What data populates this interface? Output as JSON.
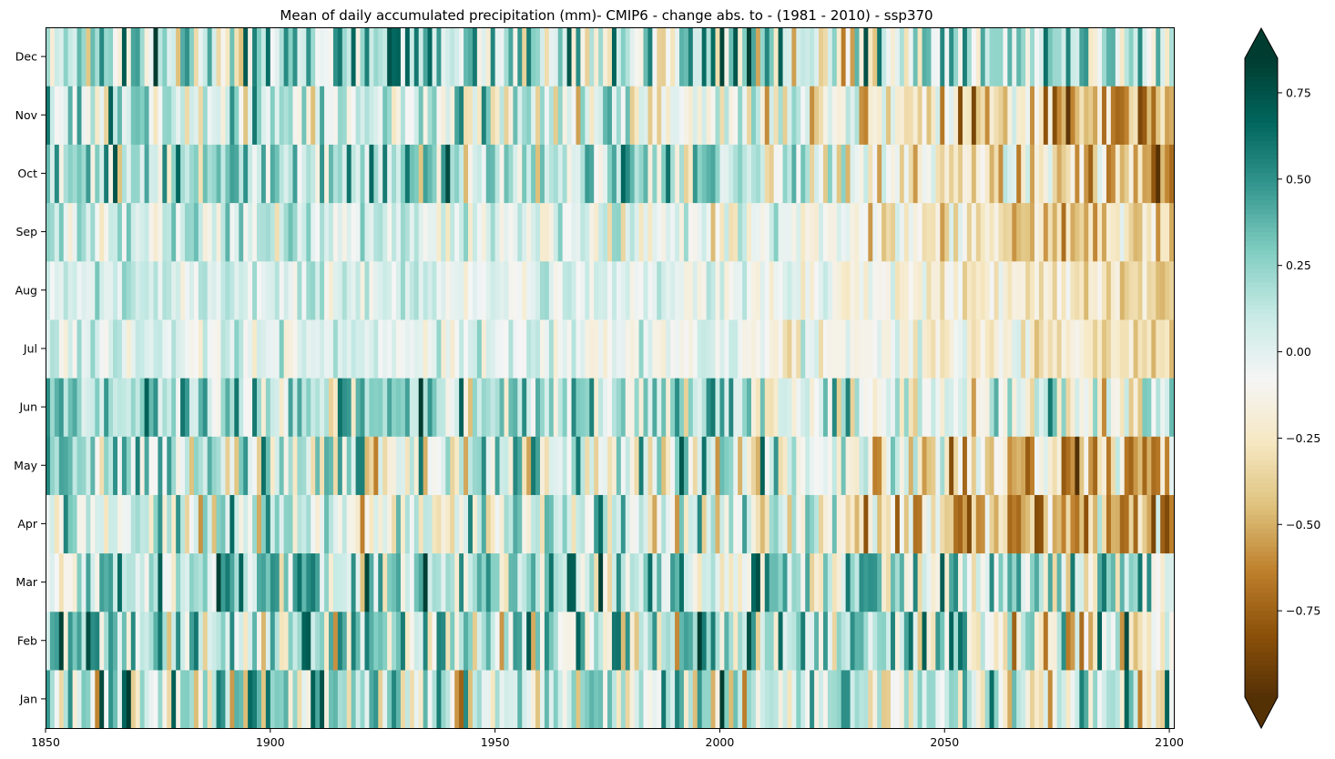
{
  "chart_data": {
    "type": "heatmap",
    "title": "Mean of daily accumulated precipitation (mm)- CMIP6 - change abs. to - (1981 - 2010) - ssp370",
    "xlabel": "",
    "ylabel": "",
    "x_range": [
      1850,
      2101
    ],
    "x_ticks": [
      "1850",
      "1900",
      "1950",
      "2000",
      "2050",
      "2100"
    ],
    "x_tick_values": [
      1850,
      1900,
      1950,
      2000,
      2050,
      2100
    ],
    "y_categories": [
      "Jan",
      "Feb",
      "Mar",
      "Apr",
      "May",
      "Jun",
      "Jul",
      "Aug",
      "Sep",
      "Oct",
      "Nov",
      "Dec"
    ],
    "colormap": "BrBG",
    "colorbar": {
      "range": [
        -1.0,
        0.85
      ],
      "extend": "both",
      "ticks": [
        -0.75,
        -0.5,
        -0.25,
        0.0,
        0.25,
        0.5,
        0.75
      ],
      "tick_labels": [
        "−0.75",
        "−0.50",
        "−0.25",
        "0.00",
        "0.25",
        "0.50",
        "0.75"
      ]
    },
    "month_trend": {
      "note_values_are_approximate_means": true,
      "Jan": {
        "start": 0.12,
        "end": 0.02,
        "spread": 0.33
      },
      "Feb": {
        "start": 0.18,
        "end": -0.08,
        "spread": 0.33
      },
      "Mar": {
        "start": 0.22,
        "end": 0.05,
        "spread": 0.3
      },
      "Apr": {
        "start": 0.12,
        "end": -0.55,
        "spread": 0.28
      },
      "May": {
        "start": 0.18,
        "end": -0.6,
        "spread": 0.28
      },
      "Jun": {
        "start": 0.25,
        "end": -0.2,
        "spread": 0.25
      },
      "Jul": {
        "start": 0.03,
        "end": -0.32,
        "spread": 0.13
      },
      "Aug": {
        "start": 0.08,
        "end": -0.35,
        "spread": 0.1
      },
      "Sep": {
        "start": 0.07,
        "end": -0.45,
        "spread": 0.16
      },
      "Oct": {
        "start": 0.25,
        "end": -0.55,
        "spread": 0.25
      },
      "Nov": {
        "start": 0.12,
        "end": -0.65,
        "spread": 0.25
      },
      "Dec": {
        "start": 0.2,
        "end": 0.05,
        "spread": 0.3
      }
    }
  }
}
